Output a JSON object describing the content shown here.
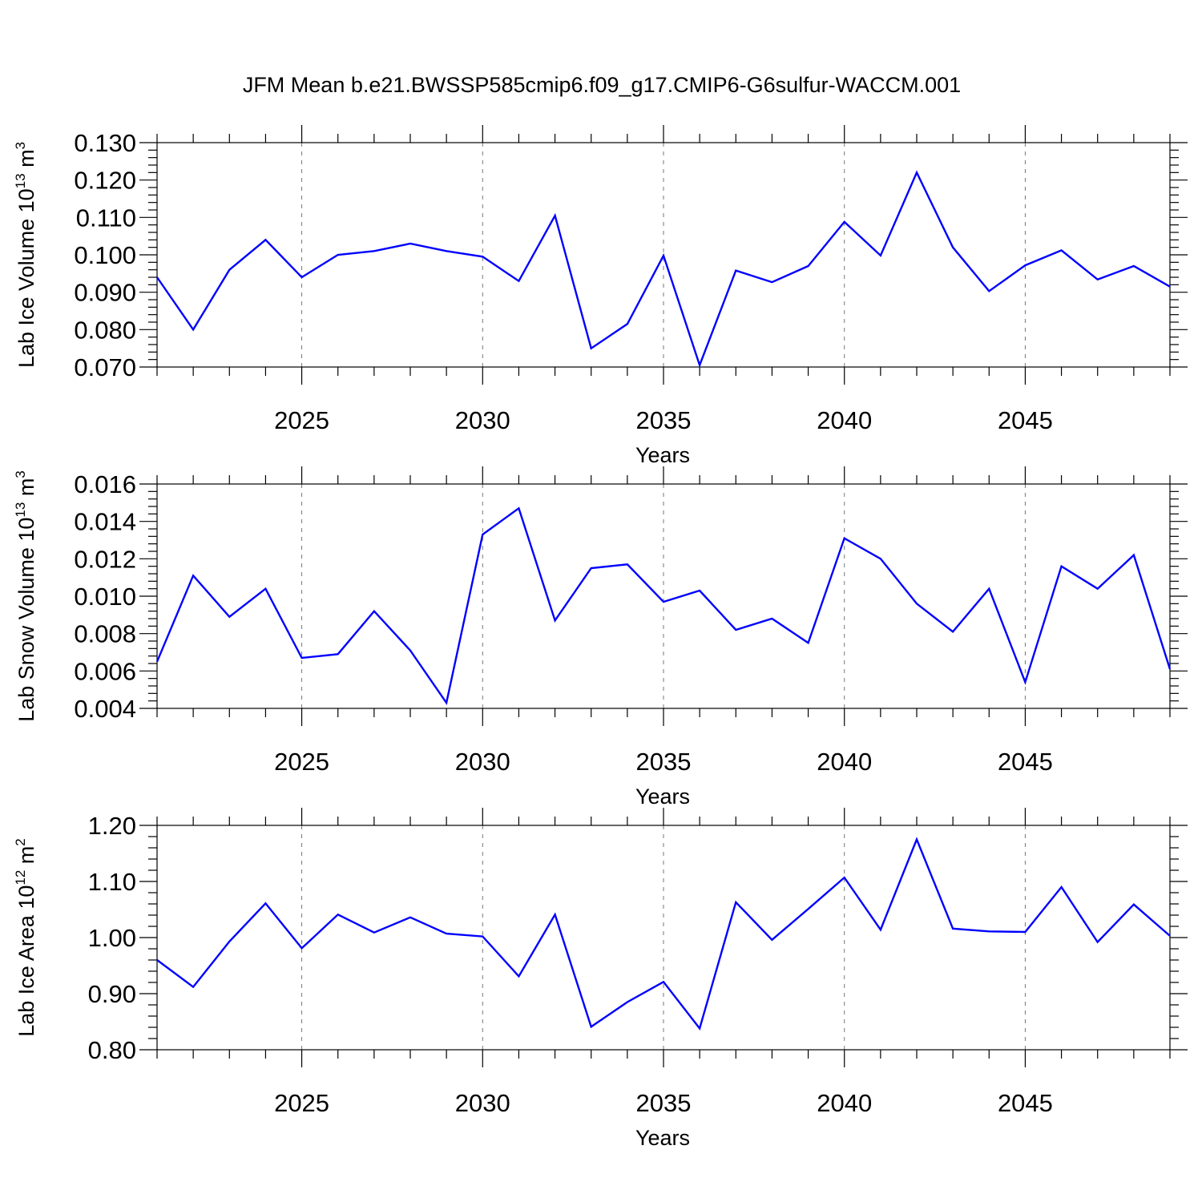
{
  "figure": {
    "title": "JFM Mean b.e21.BWSSP585cmip6.f09_g17.CMIP6-G6sulfur-WACCM.001",
    "line_color": "#0000ff"
  },
  "chart_data": [
    {
      "type": "line",
      "xlabel": "Years",
      "ylabel": {
        "text": "Lab Ice Volume 10",
        "exp": "13",
        "unit": " m",
        "unit_exp": "3"
      },
      "xlim": [
        2021,
        2049
      ],
      "ylim": [
        0.07,
        0.13
      ],
      "xticks": [
        2025,
        2030,
        2035,
        2040,
        2045
      ],
      "yticks": [
        0.07,
        0.08,
        0.09,
        0.1,
        0.11,
        0.12,
        0.13
      ],
      "ytick_labels": [
        "0.070",
        "0.080",
        "0.090",
        "0.100",
        "0.110",
        "0.120",
        "0.130"
      ],
      "grid": "vertical dashed at major x ticks",
      "x": [
        2021,
        2022,
        2023,
        2024,
        2025,
        2026,
        2027,
        2028,
        2029,
        2030,
        2031,
        2032,
        2033,
        2034,
        2035,
        2036,
        2037,
        2038,
        2039,
        2040,
        2041,
        2042,
        2043,
        2044,
        2045,
        2046,
        2047,
        2048,
        2049
      ],
      "values": [
        0.094,
        0.08,
        0.096,
        0.104,
        0.094,
        0.1,
        0.101,
        0.103,
        0.101,
        0.0995,
        0.093,
        0.1105,
        0.075,
        0.0815,
        0.0998,
        0.0705,
        0.0958,
        0.0927,
        0.097,
        0.1088,
        0.0998,
        0.122,
        0.102,
        0.0903,
        0.0972,
        0.1012,
        0.0934,
        0.097,
        0.0915
      ]
    },
    {
      "type": "line",
      "xlabel": "Years",
      "ylabel": {
        "text": "Lab Snow Volume 10",
        "exp": "13",
        "unit": " m",
        "unit_exp": "3"
      },
      "xlim": [
        2021,
        2049
      ],
      "ylim": [
        0.004,
        0.016
      ],
      "xticks": [
        2025,
        2030,
        2035,
        2040,
        2045
      ],
      "yticks": [
        0.004,
        0.006,
        0.008,
        0.01,
        0.012,
        0.014,
        0.016
      ],
      "ytick_labels": [
        "0.004",
        "0.006",
        "0.008",
        "0.010",
        "0.012",
        "0.014",
        "0.016"
      ],
      "grid": "vertical dashed at major x ticks",
      "x": [
        2021,
        2022,
        2023,
        2024,
        2025,
        2026,
        2027,
        2028,
        2029,
        2030,
        2031,
        2032,
        2033,
        2034,
        2035,
        2036,
        2037,
        2038,
        2039,
        2040,
        2041,
        2042,
        2043,
        2044,
        2045,
        2046,
        2047,
        2048,
        2049
      ],
      "values": [
        0.0065,
        0.0111,
        0.0089,
        0.0104,
        0.0067,
        0.0069,
        0.0092,
        0.0071,
        0.0043,
        0.0133,
        0.0147,
        0.0087,
        0.0115,
        0.0117,
        0.0097,
        0.0103,
        0.0082,
        0.0088,
        0.0075,
        0.0131,
        0.012,
        0.0096,
        0.0081,
        0.0104,
        0.0054,
        0.0116,
        0.0104,
        0.0122,
        0.0061
      ]
    },
    {
      "type": "line",
      "xlabel": "Years",
      "ylabel": {
        "text": "Lab Ice Area 10",
        "exp": "12",
        "unit": " m",
        "unit_exp": "2"
      },
      "xlim": [
        2021,
        2049
      ],
      "ylim": [
        0.8,
        1.2
      ],
      "xticks": [
        2025,
        2030,
        2035,
        2040,
        2045
      ],
      "yticks": [
        0.8,
        0.9,
        1.0,
        1.1,
        1.2
      ],
      "ytick_labels": [
        "0.80",
        "0.90",
        "1.00",
        "1.10",
        "1.20"
      ],
      "grid": "vertical dashed at major x ticks",
      "x": [
        2021,
        2022,
        2023,
        2024,
        2025,
        2026,
        2027,
        2028,
        2029,
        2030,
        2031,
        2032,
        2033,
        2034,
        2035,
        2036,
        2037,
        2038,
        2039,
        2040,
        2041,
        2042,
        2043,
        2044,
        2045,
        2046,
        2047,
        2048,
        2049
      ],
      "values": [
        0.96,
        0.912,
        0.993,
        1.061,
        0.981,
        1.041,
        1.009,
        1.036,
        1.007,
        1.002,
        0.931,
        1.041,
        0.841,
        0.885,
        0.921,
        0.838,
        1.063,
        0.996,
        1.051,
        1.107,
        1.014,
        1.175,
        1.016,
        1.011,
        1.01,
        1.09,
        0.992,
        1.059,
        1.003
      ]
    }
  ]
}
